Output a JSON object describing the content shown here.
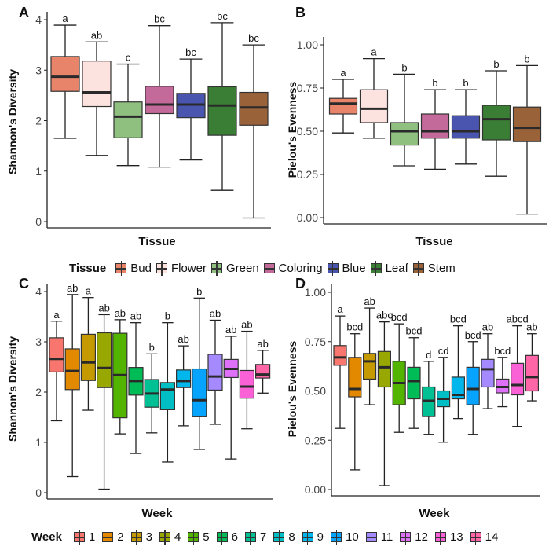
{
  "chart_data": [
    {
      "panel": "A",
      "type": "box",
      "xlabel": "Tissue",
      "ylabel": "Shannon's Diversity",
      "ylim": [
        0,
        4
      ],
      "yticks": [
        "0",
        "1",
        "2",
        "3",
        "4"
      ],
      "ytick_values": [
        0,
        1,
        2,
        3,
        4
      ],
      "categories": [
        "Bud",
        "Flower",
        "Green",
        "Coloring",
        "Blue",
        "Leaf",
        "Stem"
      ],
      "boxes": [
        {
          "min": 1.65,
          "q1": 2.58,
          "median": 2.87,
          "q3": 3.27,
          "max": 3.89,
          "letter": "a"
        },
        {
          "min": 1.31,
          "q1": 2.28,
          "median": 2.56,
          "q3": 3.18,
          "max": 3.56,
          "letter": "ab"
        },
        {
          "min": 1.11,
          "q1": 1.66,
          "median": 2.08,
          "q3": 2.37,
          "max": 3.12,
          "letter": "c"
        },
        {
          "min": 1.08,
          "q1": 2.14,
          "median": 2.32,
          "q3": 2.68,
          "max": 3.88,
          "letter": "bc"
        },
        {
          "min": 1.22,
          "q1": 2.06,
          "median": 2.32,
          "q3": 2.54,
          "max": 3.22,
          "letter": "bc"
        },
        {
          "min": 0.62,
          "q1": 1.71,
          "median": 2.3,
          "q3": 2.67,
          "max": 3.94,
          "letter": "bc"
        },
        {
          "min": 0.07,
          "q1": 1.91,
          "median": 2.26,
          "q3": 2.56,
          "max": 3.5,
          "letter": "bc"
        }
      ]
    },
    {
      "panel": "B",
      "type": "box",
      "xlabel": "Tissue",
      "ylabel": "Pielou's Evenness",
      "ylim": [
        0,
        1
      ],
      "yticks": [
        "0.00",
        "0.25",
        "0.50",
        "0.75",
        "1.00"
      ],
      "ytick_values": [
        0,
        0.25,
        0.5,
        0.75,
        1
      ],
      "categories": [
        "Bud",
        "Flower",
        "Green",
        "Coloring",
        "Blue",
        "Leaf",
        "Stem"
      ],
      "boxes": [
        {
          "min": 0.49,
          "q1": 0.6,
          "median": 0.66,
          "q3": 0.69,
          "max": 0.8,
          "letter": "a"
        },
        {
          "min": 0.46,
          "q1": 0.55,
          "median": 0.63,
          "q3": 0.74,
          "max": 0.92,
          "letter": "a"
        },
        {
          "min": 0.3,
          "q1": 0.42,
          "median": 0.5,
          "q3": 0.55,
          "max": 0.83,
          "letter": "b"
        },
        {
          "min": 0.28,
          "q1": 0.46,
          "median": 0.5,
          "q3": 0.6,
          "max": 0.74,
          "letter": "b"
        },
        {
          "min": 0.31,
          "q1": 0.46,
          "median": 0.5,
          "q3": 0.59,
          "max": 0.74,
          "letter": "b"
        },
        {
          "min": 0.24,
          "q1": 0.45,
          "median": 0.57,
          "q3": 0.65,
          "max": 0.85,
          "letter": "b"
        },
        {
          "min": 0.02,
          "q1": 0.44,
          "median": 0.52,
          "q3": 0.64,
          "max": 0.88,
          "letter": "b"
        }
      ]
    },
    {
      "panel": "C",
      "type": "box",
      "xlabel": "Week",
      "ylabel": "Shannon's Diversity",
      "ylim": [
        0,
        4
      ],
      "yticks": [
        "0",
        "1",
        "2",
        "3",
        "4"
      ],
      "ytick_values": [
        0,
        1,
        2,
        3,
        4
      ],
      "categories": [
        "1",
        "2",
        "3",
        "4",
        "5",
        "6",
        "7",
        "8",
        "9",
        "10",
        "11",
        "12",
        "13",
        "14"
      ],
      "boxes": [
        {
          "min": 1.43,
          "q1": 2.4,
          "median": 2.66,
          "q3": 3.08,
          "max": 3.41,
          "letter": "a"
        },
        {
          "min": 0.32,
          "q1": 2.05,
          "median": 2.42,
          "q3": 2.86,
          "max": 3.94,
          "letter": "ab"
        },
        {
          "min": 1.64,
          "q1": 2.23,
          "median": 2.59,
          "q3": 3.15,
          "max": 3.88,
          "letter": "a"
        },
        {
          "min": 0.07,
          "q1": 2.09,
          "median": 2.48,
          "q3": 3.18,
          "max": 3.54,
          "letter": "ab"
        },
        {
          "min": 1.17,
          "q1": 1.49,
          "median": 2.34,
          "q3": 3.17,
          "max": 3.44,
          "letter": "ab"
        },
        {
          "min": 0.78,
          "q1": 1.94,
          "median": 2.22,
          "q3": 2.49,
          "max": 3.38,
          "letter": "ab"
        },
        {
          "min": 1.19,
          "q1": 1.7,
          "median": 1.97,
          "q3": 2.25,
          "max": 2.76,
          "letter": "b"
        },
        {
          "min": 0.61,
          "q1": 1.65,
          "median": 2.05,
          "q3": 2.19,
          "max": 3.38,
          "letter": "b"
        },
        {
          "min": 1.33,
          "q1": 2.09,
          "median": 2.22,
          "q3": 2.44,
          "max": 2.92,
          "letter": "ab"
        },
        {
          "min": 0.86,
          "q1": 1.51,
          "median": 1.84,
          "q3": 2.46,
          "max": 3.87,
          "letter": "b"
        },
        {
          "min": 1.36,
          "q1": 2.04,
          "median": 2.31,
          "q3": 2.75,
          "max": 3.43,
          "letter": "ab"
        },
        {
          "min": 0.67,
          "q1": 2.29,
          "median": 2.46,
          "q3": 2.65,
          "max": 3.11,
          "letter": "ab"
        },
        {
          "min": 1.27,
          "q1": 1.88,
          "median": 2.11,
          "q3": 2.43,
          "max": 3.21,
          "letter": "ab"
        },
        {
          "min": 1.98,
          "q1": 2.28,
          "median": 2.35,
          "q3": 2.55,
          "max": 2.83,
          "letter": "ab"
        }
      ]
    },
    {
      "panel": "D",
      "type": "box",
      "xlabel": "Week",
      "ylabel": "Pielou's Evenness",
      "ylim": [
        0,
        1
      ],
      "yticks": [
        "0.00",
        "0.25",
        "0.50",
        "0.75",
        "1.00"
      ],
      "ytick_values": [
        0,
        0.25,
        0.5,
        0.75,
        1
      ],
      "categories": [
        "1",
        "2",
        "3",
        "4",
        "5",
        "6",
        "7",
        "8",
        "9",
        "10",
        "11",
        "12",
        "13",
        "14"
      ],
      "boxes": [
        {
          "min": 0.31,
          "q1": 0.63,
          "median": 0.67,
          "q3": 0.73,
          "max": 0.88,
          "letter": "a"
        },
        {
          "min": 0.1,
          "q1": 0.47,
          "median": 0.51,
          "q3": 0.67,
          "max": 0.79,
          "letter": "bcd"
        },
        {
          "min": 0.43,
          "q1": 0.56,
          "median": 0.65,
          "q3": 0.69,
          "max": 0.92,
          "letter": "ab"
        },
        {
          "min": 0.02,
          "q1": 0.52,
          "median": 0.62,
          "q3": 0.7,
          "max": 0.85,
          "letter": "abc"
        },
        {
          "min": 0.29,
          "q1": 0.43,
          "median": 0.54,
          "q3": 0.65,
          "max": 0.84,
          "letter": "bcd"
        },
        {
          "min": 0.31,
          "q1": 0.46,
          "median": 0.55,
          "q3": 0.62,
          "max": 0.77,
          "letter": "bcd"
        },
        {
          "min": 0.28,
          "q1": 0.37,
          "median": 0.45,
          "q3": 0.52,
          "max": 0.65,
          "letter": "d"
        },
        {
          "min": 0.24,
          "q1": 0.42,
          "median": 0.46,
          "q3": 0.5,
          "max": 0.67,
          "letter": "cd"
        },
        {
          "min": 0.36,
          "q1": 0.46,
          "median": 0.48,
          "q3": 0.57,
          "max": 0.83,
          "letter": "bcd"
        },
        {
          "min": 0.28,
          "q1": 0.43,
          "median": 0.51,
          "q3": 0.62,
          "max": 0.75,
          "letter": "bcd"
        },
        {
          "min": 0.41,
          "q1": 0.52,
          "median": 0.61,
          "q3": 0.66,
          "max": 0.79,
          "letter": "ab"
        },
        {
          "min": 0.42,
          "q1": 0.49,
          "median": 0.52,
          "q3": 0.56,
          "max": 0.67,
          "letter": "bcd"
        },
        {
          "min": 0.32,
          "q1": 0.48,
          "median": 0.53,
          "q3": 0.64,
          "max": 0.83,
          "letter": "abcd"
        },
        {
          "min": 0.45,
          "q1": 0.5,
          "median": 0.57,
          "q3": 0.68,
          "max": 0.79,
          "letter": "ab"
        }
      ]
    }
  ],
  "tissue_legend": {
    "title": "Tissue",
    "items": [
      "Bud",
      "Flower",
      "Green",
      "Coloring",
      "Blue",
      "Leaf",
      "Stem"
    ],
    "colors": [
      "#e8846a",
      "#fde3df",
      "#8fc07f",
      "#c46a9a",
      "#4a55b0",
      "#3a7d35",
      "#9a6238"
    ]
  },
  "week_legend": {
    "title": "Week",
    "items": [
      "1",
      "2",
      "3",
      "4",
      "5",
      "6",
      "7",
      "8",
      "9",
      "10",
      "11",
      "12",
      "13",
      "14"
    ],
    "colors": [
      "#F8766D",
      "#E38900",
      "#C49A00",
      "#99A800",
      "#53B400",
      "#00BC56",
      "#00C094",
      "#00BFC4",
      "#00B6EB",
      "#06A4FF",
      "#A58AFF",
      "#DF70F8",
      "#FB61D7",
      "#FF66A8"
    ]
  }
}
